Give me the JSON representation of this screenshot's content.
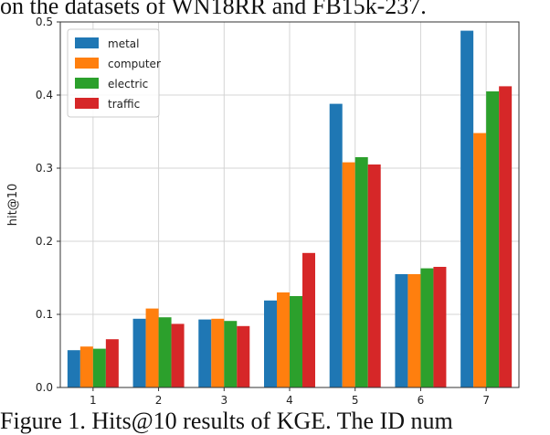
{
  "page": {
    "top_caption": "on the datasets of WN18RR and FB15k-237.",
    "bottom_caption": "Figure 1. Hits@10 results of KGE. The ID num"
  },
  "chart_data": {
    "type": "bar",
    "categories": [
      "1",
      "2",
      "3",
      "4",
      "5",
      "6",
      "7"
    ],
    "series": [
      {
        "name": "metal",
        "color": "#1f77b4",
        "values": [
          0.051,
          0.094,
          0.093,
          0.119,
          0.388,
          0.155,
          0.488
        ]
      },
      {
        "name": "computer",
        "color": "#ff7f0e",
        "values": [
          0.056,
          0.108,
          0.094,
          0.13,
          0.308,
          0.155,
          0.348
        ]
      },
      {
        "name": "electric",
        "color": "#2ca02c",
        "values": [
          0.053,
          0.096,
          0.091,
          0.125,
          0.315,
          0.163,
          0.405
        ]
      },
      {
        "name": "traffic",
        "color": "#d62728",
        "values": [
          0.066,
          0.087,
          0.084,
          0.184,
          0.305,
          0.165,
          0.412
        ]
      }
    ],
    "title": "",
    "xlabel": "",
    "ylabel": "hit@10",
    "ylim": [
      0,
      0.5
    ],
    "yticks": [
      "0.0",
      "0.1",
      "0.2",
      "0.3",
      "0.4",
      "0.5"
    ],
    "grid": true,
    "legend": "top-left"
  }
}
